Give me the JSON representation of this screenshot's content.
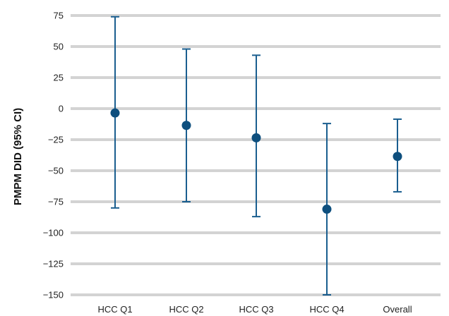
{
  "chart_data": {
    "type": "scatter",
    "title": "",
    "xlabel": "",
    "ylabel": "PMPM DID (95% CI)",
    "ylim": [
      -150,
      75
    ],
    "yticks": [
      75,
      50,
      25,
      0,
      -25,
      -50,
      -75,
      -100,
      -125,
      -150
    ],
    "ytick_labels": [
      "75",
      "50",
      "25",
      "0",
      "−25",
      "−50",
      "−75",
      "−100",
      "−125",
      "−150"
    ],
    "categories": [
      "HCC Q1",
      "HCC Q2",
      "HCC Q3",
      "HCC Q4",
      "Overall"
    ],
    "series": [
      {
        "values": [
          -3.5,
          -13.5,
          -23.5,
          -81,
          -38.5
        ],
        "ci_low": [
          -80,
          -75,
          -87,
          -150,
          -67
        ],
        "ci_high": [
          74,
          48,
          43,
          -12,
          -8.5
        ]
      }
    ],
    "grid": true,
    "legend": "none",
    "colors": {
      "point": "#0e4f7e",
      "errorbar": "#1a5e8f",
      "grid": "#d3d3d3"
    }
  }
}
